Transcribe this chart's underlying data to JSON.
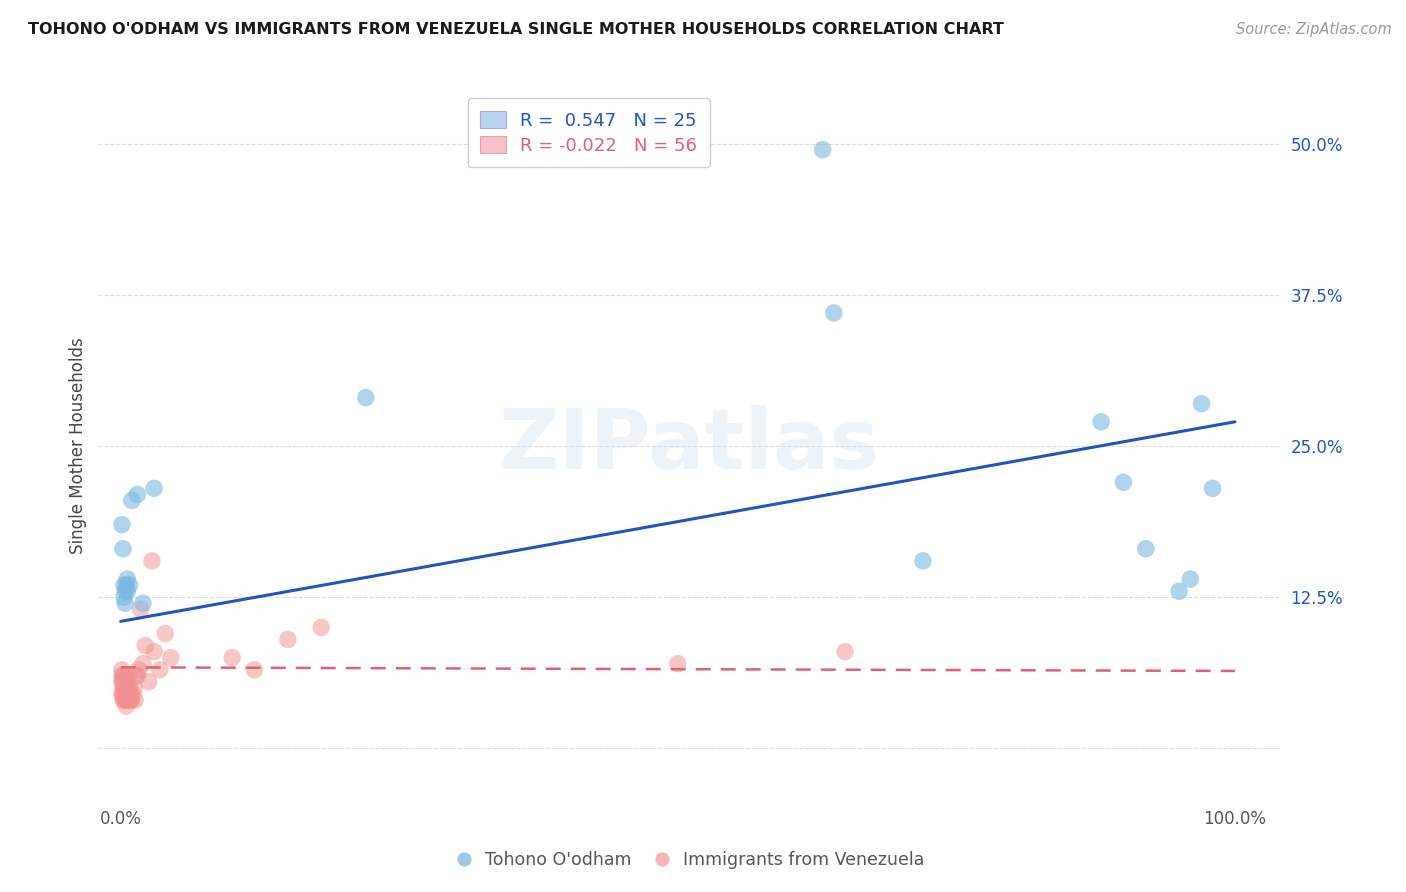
{
  "title": "TOHONO O'ODHAM VS IMMIGRANTS FROM VENEZUELA SINGLE MOTHER HOUSEHOLDS CORRELATION CHART",
  "source": "Source: ZipAtlas.com",
  "ylabel": "Single Mother Households",
  "ytick_values": [
    0.0,
    0.125,
    0.25,
    0.375,
    0.5
  ],
  "ytick_labels": [
    "",
    "12.5%",
    "25.0%",
    "37.5%",
    "50.0%"
  ],
  "xtick_values": [
    0.0,
    1.0
  ],
  "xtick_labels": [
    "0.0%",
    "100.0%"
  ],
  "legend_entry1": {
    "R": "0.547",
    "N": "25"
  },
  "legend_entry2": {
    "R": "-0.022",
    "N": "56"
  },
  "blue_dot_color": "#7ab8e0",
  "pink_dot_color": "#f09090",
  "blue_line_color": "#2255bb",
  "pink_line_color": "#e06070",
  "legend_blue_color": "#b8d4f0",
  "legend_pink_color": "#f8c0c8",
  "watermark": "ZIPatlas",
  "blue_scatter_x": [
    0.001,
    0.002,
    0.003,
    0.003,
    0.004,
    0.004,
    0.005,
    0.006,
    0.006,
    0.008,
    0.01,
    0.015,
    0.02,
    0.03,
    0.22,
    0.63,
    0.64,
    0.72,
    0.88,
    0.9,
    0.92,
    0.95,
    0.96,
    0.97,
    0.98
  ],
  "blue_scatter_y": [
    0.185,
    0.165,
    0.135,
    0.125,
    0.13,
    0.12,
    0.135,
    0.14,
    0.13,
    0.135,
    0.205,
    0.21,
    0.12,
    0.215,
    0.29,
    0.495,
    0.36,
    0.155,
    0.27,
    0.22,
    0.165,
    0.13,
    0.14,
    0.285,
    0.215
  ],
  "blue_line_x0": 0.0,
  "blue_line_y0": 0.105,
  "blue_line_x1": 1.0,
  "blue_line_y1": 0.27,
  "pink_scatter_x": [
    0.001,
    0.001,
    0.001,
    0.001,
    0.002,
    0.002,
    0.002,
    0.002,
    0.002,
    0.003,
    0.003,
    0.003,
    0.003,
    0.003,
    0.004,
    0.004,
    0.004,
    0.005,
    0.005,
    0.005,
    0.005,
    0.005,
    0.005,
    0.006,
    0.006,
    0.007,
    0.007,
    0.007,
    0.007,
    0.008,
    0.008,
    0.008,
    0.009,
    0.009,
    0.01,
    0.011,
    0.012,
    0.013,
    0.014,
    0.015,
    0.016,
    0.018,
    0.02,
    0.022,
    0.025,
    0.028,
    0.03,
    0.035,
    0.04,
    0.045,
    0.1,
    0.12,
    0.15,
    0.18,
    0.5,
    0.65
  ],
  "pink_scatter_y": [
    0.055,
    0.06,
    0.065,
    0.045,
    0.05,
    0.055,
    0.045,
    0.04,
    0.06,
    0.045,
    0.05,
    0.055,
    0.04,
    0.06,
    0.045,
    0.05,
    0.04,
    0.04,
    0.045,
    0.05,
    0.055,
    0.04,
    0.035,
    0.04,
    0.045,
    0.04,
    0.045,
    0.05,
    0.06,
    0.04,
    0.045,
    0.05,
    0.04,
    0.045,
    0.04,
    0.045,
    0.05,
    0.04,
    0.06,
    0.06,
    0.065,
    0.115,
    0.07,
    0.085,
    0.055,
    0.155,
    0.08,
    0.065,
    0.095,
    0.075,
    0.075,
    0.065,
    0.09,
    0.1,
    0.07,
    0.08
  ],
  "pink_line_x0": 0.0,
  "pink_line_y0": 0.067,
  "pink_line_x1": 1.0,
  "pink_line_y1": 0.064,
  "legend_label1": "Tohono O'odham",
  "legend_label2": "Immigrants from Venezuela",
  "background_color": "#ffffff",
  "grid_color": "#cccccc",
  "xlim": [
    -0.02,
    1.04
  ],
  "ylim": [
    -0.045,
    0.545
  ]
}
